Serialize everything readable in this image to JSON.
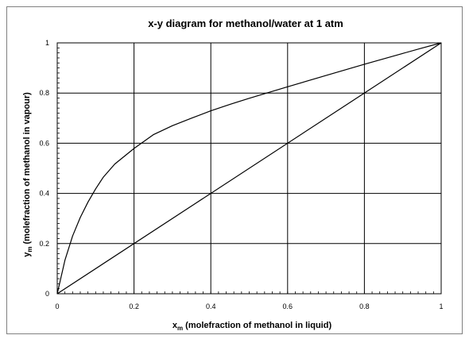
{
  "chart_data": {
    "type": "line",
    "title": "x-y diagram for methanol/water at 1 atm",
    "xlabel": {
      "main": "x",
      "sub": "m",
      "rest": " (molefraction of methanol in liquid)"
    },
    "ylabel": {
      "main": "y",
      "sub": "m",
      "rest": " (molefraction of methanol in vapour)"
    },
    "xlim": [
      0,
      1
    ],
    "ylim": [
      0,
      1
    ],
    "x_ticks": [
      0,
      0.2,
      0.4,
      0.6,
      0.8,
      1
    ],
    "y_ticks": [
      0,
      0.2,
      0.4,
      0.6,
      0.8,
      1
    ],
    "x_tick_labels": [
      "0",
      "0.2",
      "0.4",
      "0.6",
      "0.8",
      "1"
    ],
    "y_tick_labels": [
      "0",
      "0.2",
      "0.4",
      "0.6",
      "0.8",
      "1"
    ],
    "grid": true,
    "series": [
      {
        "x": [
          0,
          0.02,
          0.04,
          0.06,
          0.08,
          0.1,
          0.12,
          0.15,
          0.2,
          0.25,
          0.3,
          0.35,
          0.4,
          0.45,
          0.5,
          0.6,
          0.7,
          0.8,
          0.9,
          0.95,
          1.0
        ],
        "y": [
          0,
          0.134,
          0.23,
          0.304,
          0.365,
          0.418,
          0.465,
          0.517,
          0.579,
          0.634,
          0.67,
          0.7,
          0.729,
          0.755,
          0.779,
          0.825,
          0.87,
          0.915,
          0.958,
          0.979,
          1.0
        ]
      },
      {
        "x": [
          0,
          1
        ],
        "y": [
          0,
          1
        ]
      }
    ]
  },
  "colors": {
    "line": "#000000",
    "grid": "#000000"
  }
}
